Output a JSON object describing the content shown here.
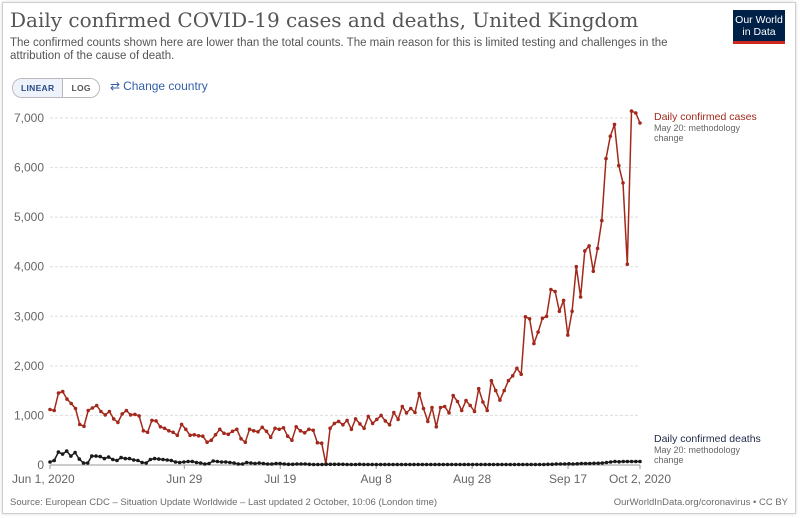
{
  "header": {
    "title": "Daily confirmed COVID-19 cases and deaths, United Kingdom",
    "subtitle": "The confirmed counts shown here are lower than the total counts. The main reason for this is limited testing and challenges in the attribution of the cause of death.",
    "logo_line1": "Our World",
    "logo_line2": "in Data"
  },
  "controls": {
    "linear_label": "LINEAR",
    "log_label": "LOG",
    "change_country_label": "Change country",
    "change_country_icon": "swap-arrows-icon"
  },
  "footer": {
    "source": "Source: European CDC – Situation Update Worldwide – Last updated 2 October, 10:06 (London time)",
    "credit": "OurWorldInData.org/coronavirus • CC BY"
  },
  "colors": {
    "cases": "#a2291c",
    "deaths": "#1a1a1a",
    "grid": "#dddddd",
    "axis_text": "#666666",
    "annotation": "#666666"
  },
  "chart_data": {
    "type": "line",
    "x_start": "2020-06-01",
    "x_end": "2020-10-02",
    "ylim": [
      0,
      7000
    ],
    "yticks": [
      0,
      1000,
      2000,
      3000,
      4000,
      5000,
      6000,
      7000
    ],
    "ytick_labels": [
      "0",
      "1,000",
      "2,000",
      "3,000",
      "4,000",
      "5,000",
      "6,000",
      "7,000"
    ],
    "xticks": [
      {
        "date": "2020-06-01",
        "label": "Jun 1, 2020"
      },
      {
        "date": "2020-06-29",
        "label": "Jun 29"
      },
      {
        "date": "2020-07-19",
        "label": "Jul 19"
      },
      {
        "date": "2020-08-08",
        "label": "Aug 8"
      },
      {
        "date": "2020-08-28",
        "label": "Aug 28"
      },
      {
        "date": "2020-09-17",
        "label": "Sep 17"
      },
      {
        "date": "2020-10-02",
        "label": "Oct 2, 2020"
      }
    ],
    "grid": true,
    "series": [
      {
        "name": "Daily confirmed cases",
        "annotation": "May 20: methodology change",
        "values": [
          1120,
          1100,
          1450,
          1480,
          1330,
          1240,
          1140,
          820,
          780,
          1100,
          1150,
          1200,
          1080,
          1010,
          1080,
          930,
          860,
          1030,
          1100,
          1010,
          1020,
          990,
          690,
          660,
          900,
          890,
          770,
          740,
          690,
          660,
          600,
          820,
          720,
          600,
          610,
          590,
          580,
          460,
          500,
          610,
          720,
          640,
          620,
          680,
          720,
          530,
          460,
          720,
          690,
          670,
          760,
          680,
          560,
          740,
          720,
          750,
          580,
          500,
          770,
          690,
          650,
          720,
          700,
          450,
          440,
          20,
          740,
          840,
          880,
          810,
          900,
          720,
          930,
          830,
          740,
          980,
          840,
          920,
          1000,
          890,
          810,
          1060,
          920,
          1180,
          1050,
          1140,
          1060,
          1440,
          1140,
          880,
          1160,
          770,
          1160,
          1180,
          1050,
          1400,
          1280,
          1100,
          1300,
          1200,
          1080,
          1540,
          1270,
          1100,
          1700,
          1500,
          1310,
          1500,
          1700,
          1800,
          1950,
          1830,
          2990,
          2950,
          2450,
          2680,
          2960,
          3000,
          3540,
          3500,
          3100,
          3320,
          2620,
          3100,
          4000,
          3390,
          4320,
          4420,
          3910,
          4370,
          4930,
          6180,
          6630,
          6870,
          6040,
          5690,
          4050,
          7140,
          7100,
          6900
        ]
      },
      {
        "name": "Daily confirmed deaths",
        "annotation": "May 20: methodology change",
        "values": [
          60,
          90,
          260,
          220,
          280,
          180,
          250,
          120,
          40,
          40,
          180,
          180,
          170,
          130,
          160,
          110,
          90,
          150,
          130,
          130,
          100,
          90,
          50,
          40,
          110,
          130,
          120,
          110,
          100,
          90,
          60,
          50,
          60,
          70,
          70,
          50,
          40,
          20,
          30,
          80,
          70,
          60,
          60,
          50,
          40,
          20,
          20,
          50,
          40,
          30,
          40,
          30,
          20,
          20,
          30,
          30,
          20,
          15,
          15,
          20,
          20,
          20,
          15,
          10,
          10,
          10,
          15,
          15,
          15,
          15,
          15,
          10,
          10,
          10,
          15,
          10,
          10,
          10,
          10,
          10,
          10,
          10,
          10,
          10,
          10,
          10,
          10,
          10,
          10,
          10,
          10,
          10,
          10,
          10,
          10,
          10,
          10,
          10,
          10,
          10,
          10,
          10,
          10,
          10,
          10,
          10,
          10,
          10,
          10,
          10,
          10,
          10,
          10,
          10,
          10,
          10,
          10,
          10,
          10,
          15,
          15,
          20,
          20,
          20,
          25,
          20,
          25,
          30,
          30,
          30,
          35,
          35,
          40,
          50,
          60,
          70,
          65,
          70,
          70,
          70,
          70,
          70
        ]
      }
    ]
  }
}
